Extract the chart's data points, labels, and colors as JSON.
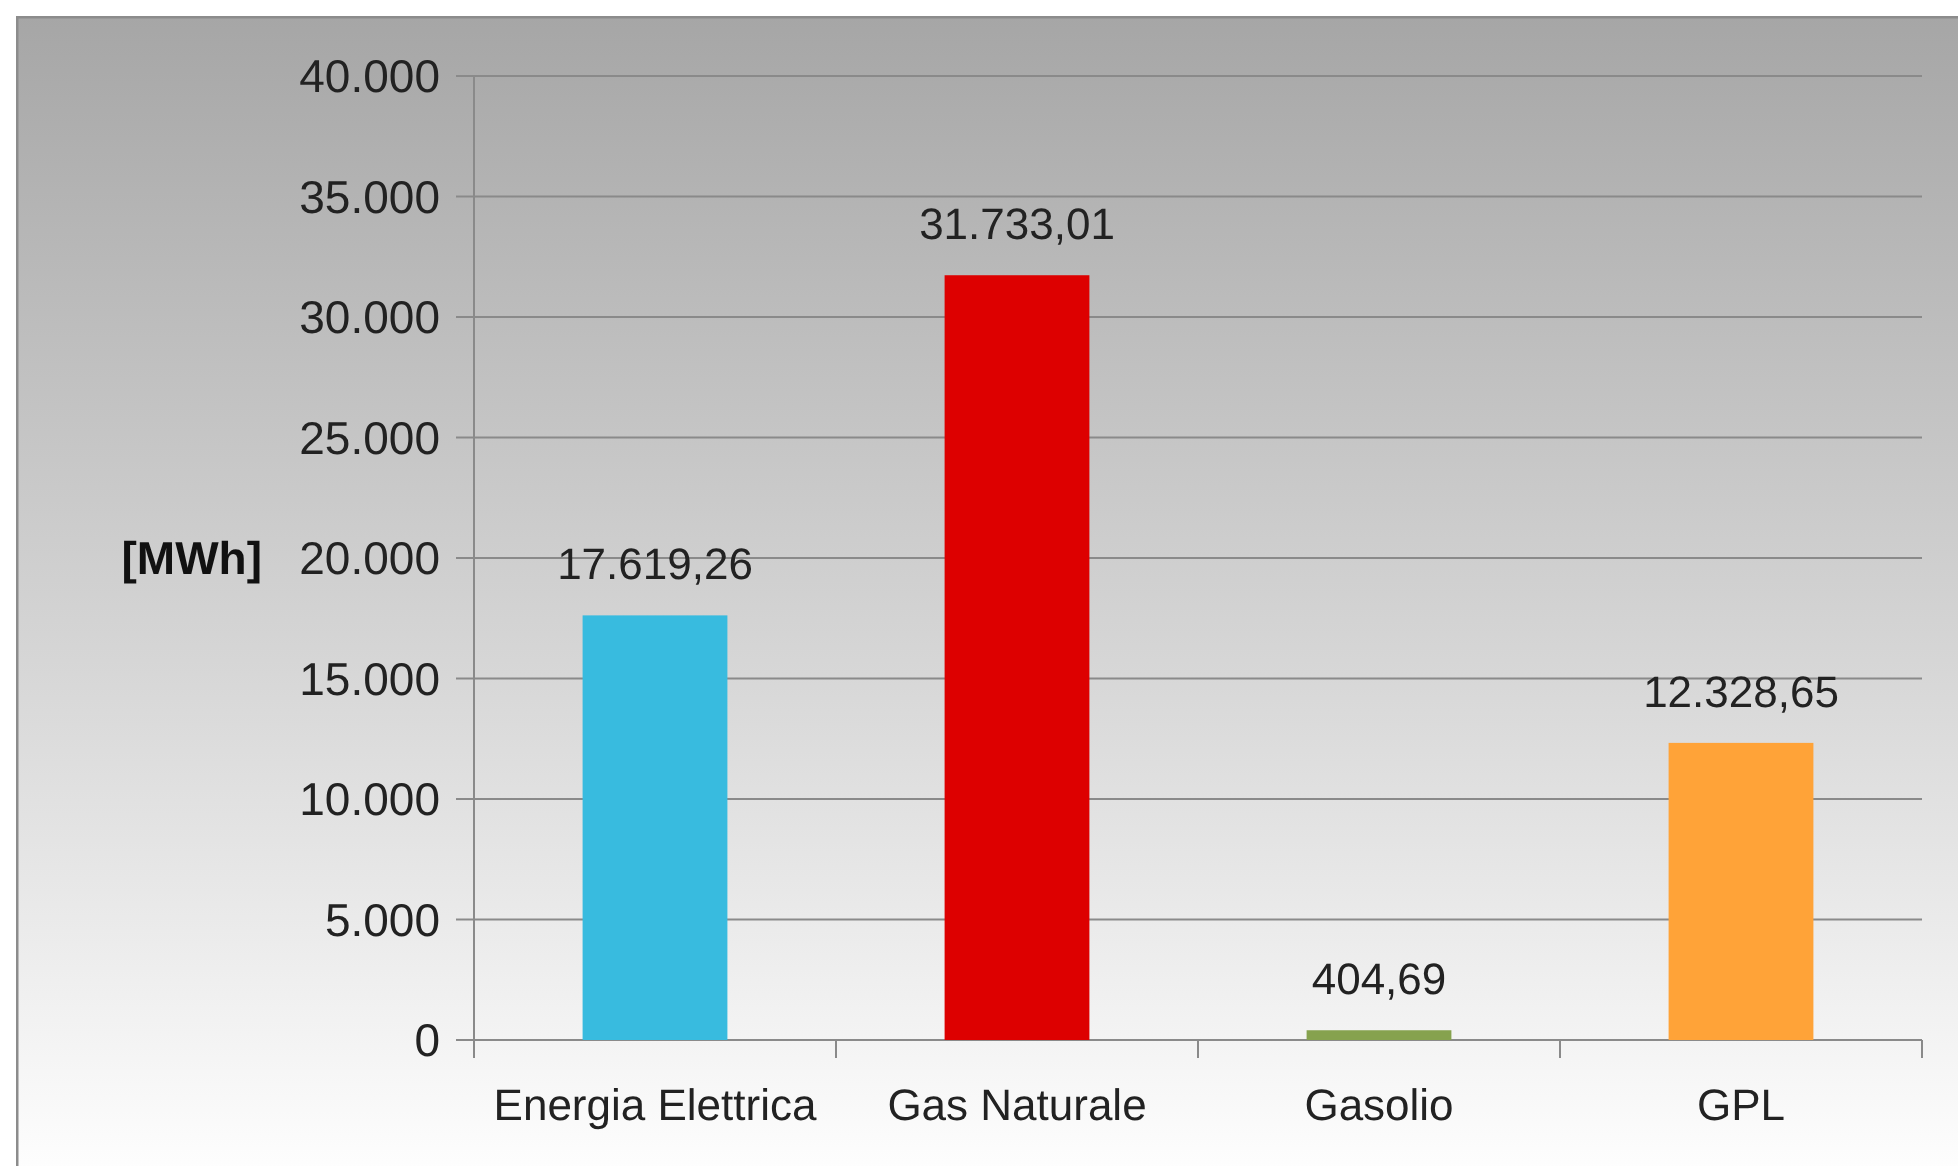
{
  "chart_data": {
    "type": "bar",
    "ylabel": "[MWh]",
    "categories": [
      "Energia Elettrica",
      "Gas Naturale",
      "Gasolio",
      "GPL"
    ],
    "values": [
      17619.26,
      31733.01,
      404.69,
      12328.65
    ],
    "colors": [
      "#38bbdf",
      "#dd0000",
      "#86a24e",
      "#ffa338"
    ],
    "value_labels": [
      "17.619,26",
      "31.733,01",
      "404,69",
      "12.328,65"
    ],
    "ylim": [
      0,
      40000
    ],
    "yticks": [
      0,
      {
        "value": 5000,
        "label": "5.000"
      },
      {
        "value": 10000,
        "label": "10.000"
      },
      {
        "value": 15000,
        "label": "15.000"
      },
      {
        "value": 20000,
        "label": "20.000"
      },
      {
        "value": 25000,
        "label": "25.000"
      },
      {
        "value": 30000,
        "label": "30.000"
      },
      {
        "value": 35000,
        "label": "35.000"
      },
      {
        "value": 40000,
        "label": "40.000"
      }
    ],
    "grid": "y"
  }
}
